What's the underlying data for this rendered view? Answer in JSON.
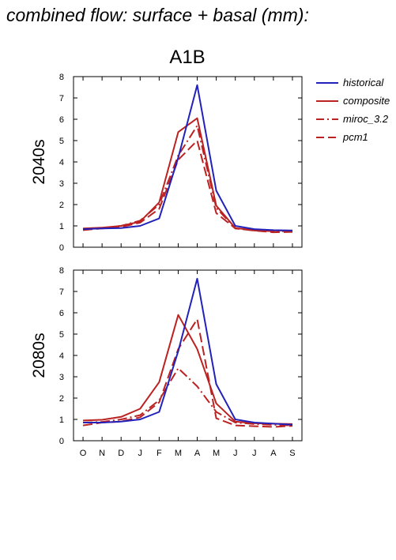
{
  "page": {
    "title": "combined flow: surface + basal (mm):"
  },
  "chart_data": {
    "type": "line",
    "title": "A1B",
    "categories": [
      "O",
      "N",
      "D",
      "J",
      "F",
      "M",
      "A",
      "M",
      "J",
      "J",
      "A",
      "S"
    ],
    "ylim": [
      0,
      8
    ],
    "yticks": [
      0,
      1,
      2,
      3,
      4,
      5,
      6,
      7,
      8
    ],
    "legend": {
      "placement": "right",
      "entries": [
        {
          "name": "historical",
          "color": "#2222bb",
          "dash": "solid"
        },
        {
          "name": "composite",
          "color": "#bb2222",
          "dash": "solid"
        },
        {
          "name": "miroc_3.2",
          "color": "#bb2222",
          "dash": "dashdot"
        },
        {
          "name": "pcm1",
          "color": "#bb2222",
          "dash": "dashed"
        }
      ]
    },
    "panels": [
      {
        "label": "2040s",
        "series": [
          {
            "name": "historical",
            "values": [
              0.85,
              0.88,
              0.9,
              1.0,
              1.35,
              4.2,
              7.6,
              2.65,
              1.0,
              0.85,
              0.8,
              0.78
            ]
          },
          {
            "name": "composite",
            "values": [
              0.88,
              0.92,
              1.0,
              1.2,
              2.1,
              5.4,
              6.05,
              1.95,
              0.9,
              0.8,
              0.78,
              0.78
            ]
          },
          {
            "name": "miroc_3.2",
            "values": [
              0.85,
              0.9,
              1.0,
              1.25,
              2.0,
              4.3,
              5.7,
              1.85,
              0.88,
              0.78,
              0.75,
              0.75
            ]
          },
          {
            "name": "pcm1",
            "values": [
              0.8,
              0.88,
              0.95,
              1.15,
              1.8,
              4.1,
              5.0,
              1.6,
              0.88,
              0.78,
              0.7,
              0.72
            ]
          }
        ]
      },
      {
        "label": "2080s",
        "series": [
          {
            "name": "historical",
            "values": [
              0.85,
              0.85,
              0.9,
              1.0,
              1.35,
              4.2,
              7.6,
              2.65,
              1.0,
              0.85,
              0.8,
              0.75
            ]
          },
          {
            "name": "composite",
            "values": [
              0.95,
              0.98,
              1.12,
              1.5,
              2.75,
              5.9,
              4.3,
              1.75,
              0.9,
              0.82,
              0.8,
              0.78
            ]
          },
          {
            "name": "miroc_3.2",
            "values": [
              0.85,
              0.88,
              1.0,
              1.2,
              1.9,
              3.4,
              2.55,
              1.35,
              0.85,
              0.78,
              0.75,
              0.72
            ]
          },
          {
            "name": "pcm1",
            "values": [
              0.72,
              0.85,
              0.9,
              1.1,
              1.8,
              4.3,
              5.7,
              1.05,
              0.72,
              0.68,
              0.65,
              0.7
            ]
          }
        ]
      }
    ]
  }
}
